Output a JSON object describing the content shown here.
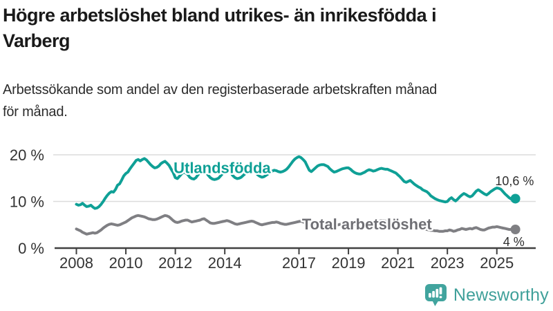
{
  "header": {
    "title_lines": [
      "Högre arbetslöshet bland utrikes- än inrikesfödda i",
      "Varberg"
    ],
    "subtitle_lines": [
      "Arbetssökande som andel av den registerbaserade arbetskraften månad",
      "för månad."
    ]
  },
  "footer": {
    "brand": "Newsworthy",
    "logo_icon": "bar-chart-speech-bubble-icon",
    "brand_color": "#3FA09A"
  },
  "colors": {
    "foreign_born_line": "#0FA096",
    "total_line": "#7F7F83",
    "grid": "#DBDBDB",
    "axis": "#404040",
    "text": "#2E2E2E"
  },
  "chart_data": {
    "type": "line",
    "title": "Högre arbetslöshet bland utrikes- än inrikesfödda i Varberg",
    "subtitle": "Arbetssökande som andel av den registerbaserade arbetskraften månad för månad.",
    "unit": "%",
    "x_range": [
      2008.0,
      2025.75
    ],
    "ylim": [
      0,
      20
    ],
    "grid": "horizontal",
    "legend_position": "inline-labels",
    "x_ticks": [
      {
        "year": 2008,
        "label": "2008"
      },
      {
        "year": 2010,
        "label": "2010"
      },
      {
        "year": 2012,
        "label": "2012"
      },
      {
        "year": 2014,
        "label": "2014"
      },
      {
        "year": 2017,
        "label": "2017"
      },
      {
        "year": 2019,
        "label": "2019"
      },
      {
        "year": 2021,
        "label": "2021"
      },
      {
        "year": 2023,
        "label": "2023"
      },
      {
        "year": 2025,
        "label": "2025"
      }
    ],
    "y_ticks": [
      {
        "value": 0,
        "label": "0 %"
      },
      {
        "value": 10,
        "label": "10 %"
      },
      {
        "value": 20,
        "label": "20 %"
      }
    ],
    "series": [
      {
        "name": "Utlandsfödda",
        "color": "#0FA096",
        "start_year": 2008,
        "interval_months": 1,
        "end_dot": true,
        "end_value": 10.6,
        "end_label": "10,6 %",
        "values": [
          9.4,
          9.2,
          9.3,
          9.6,
          9.2,
          8.9,
          9.0,
          9.2,
          8.8,
          8.5,
          8.6,
          8.9,
          9.4,
          10.0,
          10.7,
          11.3,
          11.8,
          12.1,
          12.0,
          12.6,
          13.5,
          13.8,
          14.6,
          15.5,
          16.0,
          16.3,
          17.0,
          17.6,
          18.2,
          18.8,
          19.0,
          18.7,
          19.0,
          19.2,
          18.9,
          18.4,
          17.9,
          17.5,
          17.2,
          17.3,
          17.6,
          18.1,
          18.4,
          18.6,
          18.2,
          17.7,
          16.9,
          16.2,
          15.1,
          14.9,
          15.4,
          15.9,
          16.3,
          16.1,
          15.8,
          15.2,
          14.9,
          14.8,
          15.1,
          15.7,
          16.2,
          16.5,
          16.6,
          16.2,
          15.6,
          15.1,
          14.8,
          14.7,
          14.8,
          15.0,
          15.5,
          16.0,
          16.4,
          16.6,
          16.6,
          16.1,
          15.5,
          15.1,
          14.9,
          15.0,
          15.2,
          15.6,
          16.0,
          16.3,
          16.6,
          16.8,
          16.7,
          16.2,
          15.7,
          15.4,
          15.2,
          15.3,
          15.6,
          15.9,
          16.2,
          16.5,
          16.7,
          16.6,
          16.4,
          16.3,
          16.4,
          16.6,
          16.9,
          17.4,
          18.0,
          18.6,
          19.1,
          19.4,
          19.6,
          19.4,
          19.0,
          18.5,
          17.6,
          16.7,
          16.4,
          16.8,
          17.2,
          17.6,
          17.8,
          17.9,
          17.9,
          17.7,
          17.5,
          17.0,
          16.6,
          16.3,
          16.4,
          16.6,
          16.8,
          17.0,
          17.1,
          17.2,
          17.2,
          16.9,
          16.5,
          16.2,
          16.0,
          15.9,
          15.9,
          16.1,
          16.3,
          16.6,
          16.8,
          16.7,
          16.5,
          16.6,
          16.8,
          17.0,
          17.1,
          17.0,
          16.9,
          16.9,
          16.7,
          16.5,
          16.3,
          16.1,
          15.7,
          15.3,
          14.8,
          14.3,
          14.1,
          14.3,
          14.5,
          14.1,
          13.7,
          13.4,
          13.1,
          12.9,
          12.5,
          12.3,
          12.1,
          11.7,
          11.2,
          10.9,
          10.6,
          10.4,
          10.2,
          10.1,
          10.0,
          9.9,
          10.0,
          10.5,
          10.8,
          10.4,
          10.1,
          10.5,
          11.0,
          11.4,
          11.7,
          11.5,
          11.2,
          11.0,
          11.2,
          11.7,
          12.2,
          12.5,
          12.2,
          11.9,
          11.6,
          11.4,
          11.7,
          12.1,
          12.4,
          12.7,
          12.9,
          12.8,
          12.6,
          12.1,
          11.6,
          11.2,
          10.8,
          10.5,
          10.4,
          10.6
        ]
      },
      {
        "name": "Total arbetslöshet",
        "color": "#7F7F83",
        "start_year": 2008,
        "interval_months": 1,
        "end_dot": true,
        "end_value": 4.0,
        "end_label": "4 %",
        "values": [
          4.1,
          3.9,
          3.7,
          3.4,
          3.2,
          3.0,
          3.1,
          3.2,
          3.3,
          3.2,
          3.3,
          3.6,
          3.9,
          4.3,
          4.6,
          4.9,
          5.1,
          5.2,
          5.1,
          5.0,
          4.9,
          5.0,
          5.2,
          5.4,
          5.6,
          5.9,
          6.2,
          6.5,
          6.7,
          6.9,
          7.0,
          6.9,
          6.8,
          6.7,
          6.5,
          6.3,
          6.2,
          6.1,
          6.1,
          6.2,
          6.4,
          6.6,
          6.8,
          7.0,
          6.9,
          6.7,
          6.3,
          5.9,
          5.6,
          5.5,
          5.6,
          5.8,
          5.9,
          6.0,
          6.0,
          5.8,
          5.6,
          5.7,
          5.8,
          5.9,
          6.0,
          6.2,
          6.3,
          6.0,
          5.7,
          5.4,
          5.3,
          5.3,
          5.4,
          5.5,
          5.6,
          5.7,
          5.8,
          5.9,
          5.8,
          5.6,
          5.4,
          5.2,
          5.1,
          5.2,
          5.3,
          5.4,
          5.5,
          5.6,
          5.7,
          5.8,
          5.7,
          5.5,
          5.3,
          5.1,
          5.0,
          5.1,
          5.2,
          5.3,
          5.4,
          5.5,
          5.5,
          5.6,
          5.5,
          5.3,
          5.2,
          5.1,
          5.1,
          5.2,
          5.3,
          5.4,
          5.5,
          5.6,
          5.7,
          5.8,
          5.6,
          5.4,
          5.2,
          5.0,
          5.0,
          5.1,
          5.2,
          5.3,
          5.4,
          5.4,
          5.5,
          5.4,
          5.3,
          5.1,
          5.0,
          4.9,
          4.9,
          5.0,
          5.1,
          5.2,
          5.3,
          5.3,
          5.3,
          5.4,
          5.2,
          5.1,
          5.0,
          4.9,
          4.9,
          5.0,
          5.1,
          5.2,
          5.3,
          5.3,
          5.4,
          5.5,
          5.7,
          5.8,
          5.9,
          5.9,
          5.8,
          5.7,
          5.6,
          5.5,
          5.4,
          5.4,
          5.3,
          5.2,
          5.1,
          5.0,
          4.9,
          4.8,
          4.7,
          4.6,
          4.5,
          4.4,
          4.4,
          4.3,
          4.2,
          4.1,
          4.0,
          3.9,
          3.8,
          3.8,
          3.7,
          3.7,
          3.6,
          3.6,
          3.6,
          3.7,
          3.7,
          3.9,
          3.8,
          3.6,
          3.7,
          3.9,
          4.0,
          4.2,
          4.1,
          4.0,
          4.1,
          4.2,
          4.1,
          4.3,
          4.4,
          4.2,
          4.0,
          3.9,
          3.9,
          4.1,
          4.3,
          4.4,
          4.5,
          4.5,
          4.6,
          4.5,
          4.4,
          4.3,
          4.2,
          4.1,
          4.0,
          4.0,
          4.0,
          4.0
        ]
      }
    ],
    "annotations": [
      {
        "text": "Utlandsfödda",
        "year": 2011.93,
        "value": 16.1,
        "anchor": "start",
        "color": "#0FA096",
        "size": 22,
        "bold": true,
        "halo": true
      },
      {
        "text": "Total arbetslöshet",
        "year": 2017.12,
        "value": 4.0,
        "anchor": "start",
        "color": "#6F6F74",
        "size": 22,
        "bold": true,
        "halo": true
      },
      {
        "text": "10,6 %",
        "year": 2026.5,
        "value": 13.5,
        "anchor": "end",
        "color": "#2E2E2E",
        "size": 18,
        "bold": false,
        "halo": false
      },
      {
        "text": "4 %",
        "year": 2026.12,
        "value": 0.45,
        "anchor": "end",
        "color": "#2E2E2E",
        "size": 18,
        "bold": false,
        "halo": false
      }
    ]
  }
}
